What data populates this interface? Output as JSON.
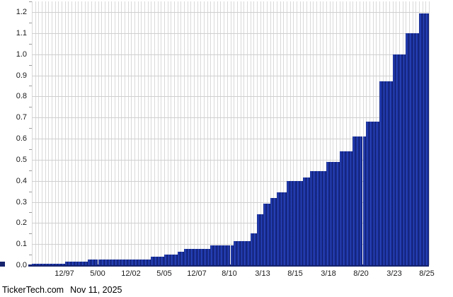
{
  "footer": {
    "source": "TickerTech.com",
    "date": "Nov 11, 2025"
  },
  "chart_data": {
    "type": "bar",
    "title": "",
    "xlabel": "",
    "ylabel": "",
    "grid": "on",
    "legend": "none",
    "frequency_hint": "quarterly bars, contiguous, step-increasing",
    "ylim": [
      0,
      1.25
    ],
    "y_ticks": [
      "0.0",
      "0.1",
      "0.2",
      "0.3",
      "0.4",
      "0.5",
      "0.6",
      "0.7",
      "0.8",
      "0.9",
      "1.0",
      "1.1",
      "1.2"
    ],
    "x_ticks": [
      "12/97",
      "5/00",
      "12/02",
      "5/05",
      "12/07",
      "8/10",
      "3/13",
      "8/15",
      "3/18",
      "8/20",
      "3/23",
      "8/25"
    ],
    "colors": {
      "bar_mid": "#1b2f9e",
      "bar_light": "#2c49c4",
      "bar_dark": "#101f6e",
      "grid_vertical": "#d9d9d9",
      "grid_horizontal": "#cfcfcf",
      "axis": "#16246e",
      "tick_text": "#1a1a1a",
      "footer_text": "#000000",
      "background": "#ffffff"
    },
    "values": [
      0.007,
      0.007,
      0.007,
      0.007,
      0.007,
      0.007,
      0.007,
      0.007,
      0.007,
      0.007,
      0.018,
      0.018,
      0.018,
      0.018,
      0.018,
      0.018,
      0.018,
      0.028,
      0.028,
      0.028,
      0.028,
      0.028,
      0.028,
      0.028,
      0.028,
      0.028,
      0.028,
      0.028,
      0.028,
      0.028,
      0.028,
      0.028,
      0.028,
      0.028,
      0.028,
      0.028,
      0.04,
      0.04,
      0.04,
      0.04,
      0.05,
      0.05,
      0.05,
      0.05,
      0.0625,
      0.0625,
      0.078,
      0.078,
      0.078,
      0.078,
      0.078,
      0.078,
      0.078,
      0.078,
      0.095,
      0.095,
      0.095,
      0.095,
      0.095,
      0.095,
      0.095,
      0.115,
      0.115,
      0.115,
      0.115,
      0.115,
      0.15,
      0.15,
      0.24,
      0.24,
      0.29,
      0.29,
      0.32,
      0.32,
      0.345,
      0.345,
      0.345,
      0.4,
      0.4,
      0.4,
      0.4,
      0.4,
      0.415,
      0.415,
      0.445,
      0.445,
      0.445,
      0.445,
      0.445,
      0.49,
      0.49,
      0.49,
      0.49,
      0.54,
      0.54,
      0.54,
      0.54,
      0.61,
      0.61,
      0.61,
      0.61,
      0.68,
      0.68,
      0.68,
      0.68,
      0.87,
      0.87,
      0.87,
      0.87,
      1.0,
      1.0,
      1.0,
      1.0,
      1.1,
      1.1,
      1.1,
      1.1,
      1.195,
      1.195,
      1.195
    ]
  }
}
